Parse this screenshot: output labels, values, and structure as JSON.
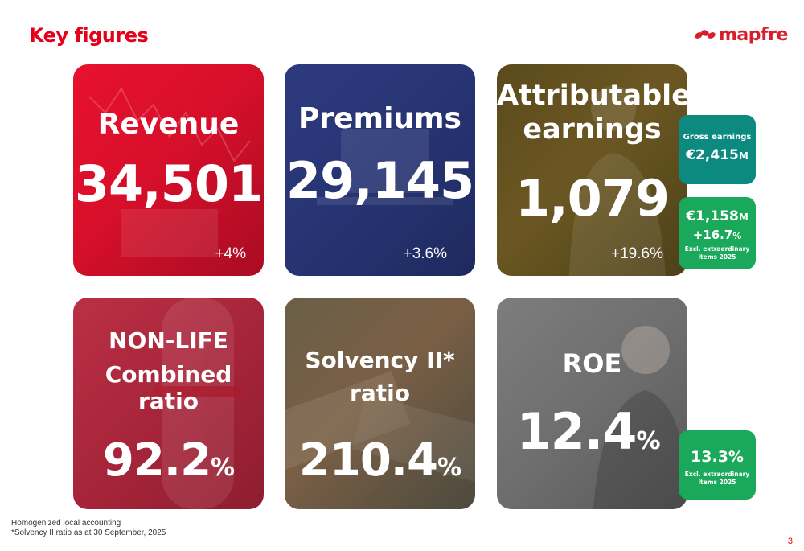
{
  "page": {
    "title": "Key figures",
    "page_number": "3"
  },
  "logo": {
    "text": "mapfre"
  },
  "colors": {
    "brand_red": "#e3001b",
    "teal": "#0c8a80",
    "green": "#1aa85a"
  },
  "cards": {
    "revenue": {
      "title": "Revenue",
      "value": "34,501",
      "change": "+4%"
    },
    "premiums": {
      "title": "Premiums",
      "value": "29,145",
      "change": "+3.6%"
    },
    "earnings": {
      "title_line1": "Attributable",
      "title_line2": "earnings",
      "value": "1,079",
      "change": "+19.6%"
    },
    "combined_ratio": {
      "title_line1": "NON-LIFE",
      "title_line2": "Combined",
      "title_line3": "ratio",
      "value": "92.2",
      "unit": "%"
    },
    "solvency": {
      "title_line1": "Solvency II*",
      "title_line2": "ratio",
      "value": "210.4",
      "unit": "%"
    },
    "roe": {
      "title": "ROE",
      "value": "12.4",
      "unit": "%"
    }
  },
  "side_boxes": {
    "gross": {
      "label": "Gross earnings",
      "value": "€2,415",
      "suffix": "M"
    },
    "excl_earnings": {
      "value": "€1,158",
      "suffix": "M",
      "change": "+16.7",
      "change_unit": "%",
      "note_line1": "Excl. extraordinary",
      "note_line2": "items 2025"
    },
    "excl_roe": {
      "value": "13.3%",
      "note_line1": "Excl. extraordinary",
      "note_line2": "items 2025"
    }
  },
  "footnotes": {
    "line1": "Homogenized local accounting",
    "line2": "*Solvency II ratio as at 30 September, 2025"
  }
}
